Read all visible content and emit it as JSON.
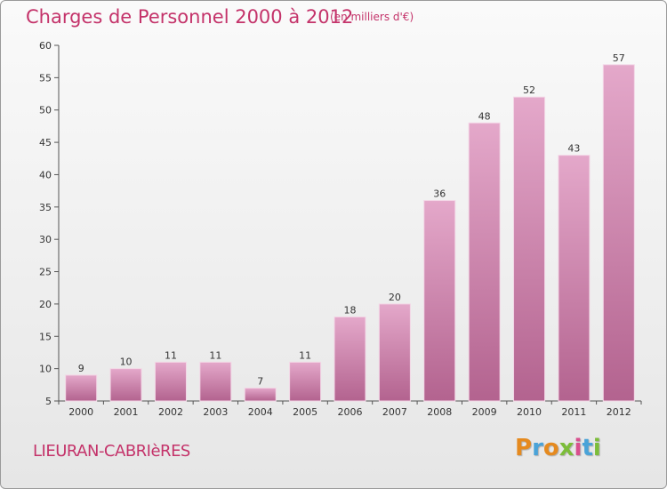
{
  "header": {
    "title": "Charges de Personnel 2000 à 2012",
    "subtitle": "(en milliers d'€)"
  },
  "footer": {
    "commune": "LIEURAN-CABRIèRES",
    "logo": "Proxiti"
  },
  "colors": {
    "title": "#c4336a",
    "bar_top": "#e4a8ca",
    "bar_bottom": "#b3638f",
    "logo_letters": [
      "#e58a1f",
      "#4aa3d8",
      "#e58a1f",
      "#7cbd3a",
      "#d94f8e",
      "#4aa3d8",
      "#7cbd3a"
    ]
  },
  "chart_data": {
    "type": "bar",
    "categories": [
      "2000",
      "2001",
      "2002",
      "2003",
      "2004",
      "2005",
      "2006",
      "2007",
      "2008",
      "2009",
      "2010",
      "2011",
      "2012"
    ],
    "values": [
      9,
      10,
      11,
      11,
      7,
      11,
      18,
      20,
      36,
      48,
      52,
      43,
      57
    ],
    "ylim": [
      5,
      60
    ],
    "yticks": [
      5,
      10,
      15,
      20,
      25,
      30,
      35,
      40,
      45,
      50,
      55,
      60
    ],
    "data_labels": true,
    "grid": false
  }
}
